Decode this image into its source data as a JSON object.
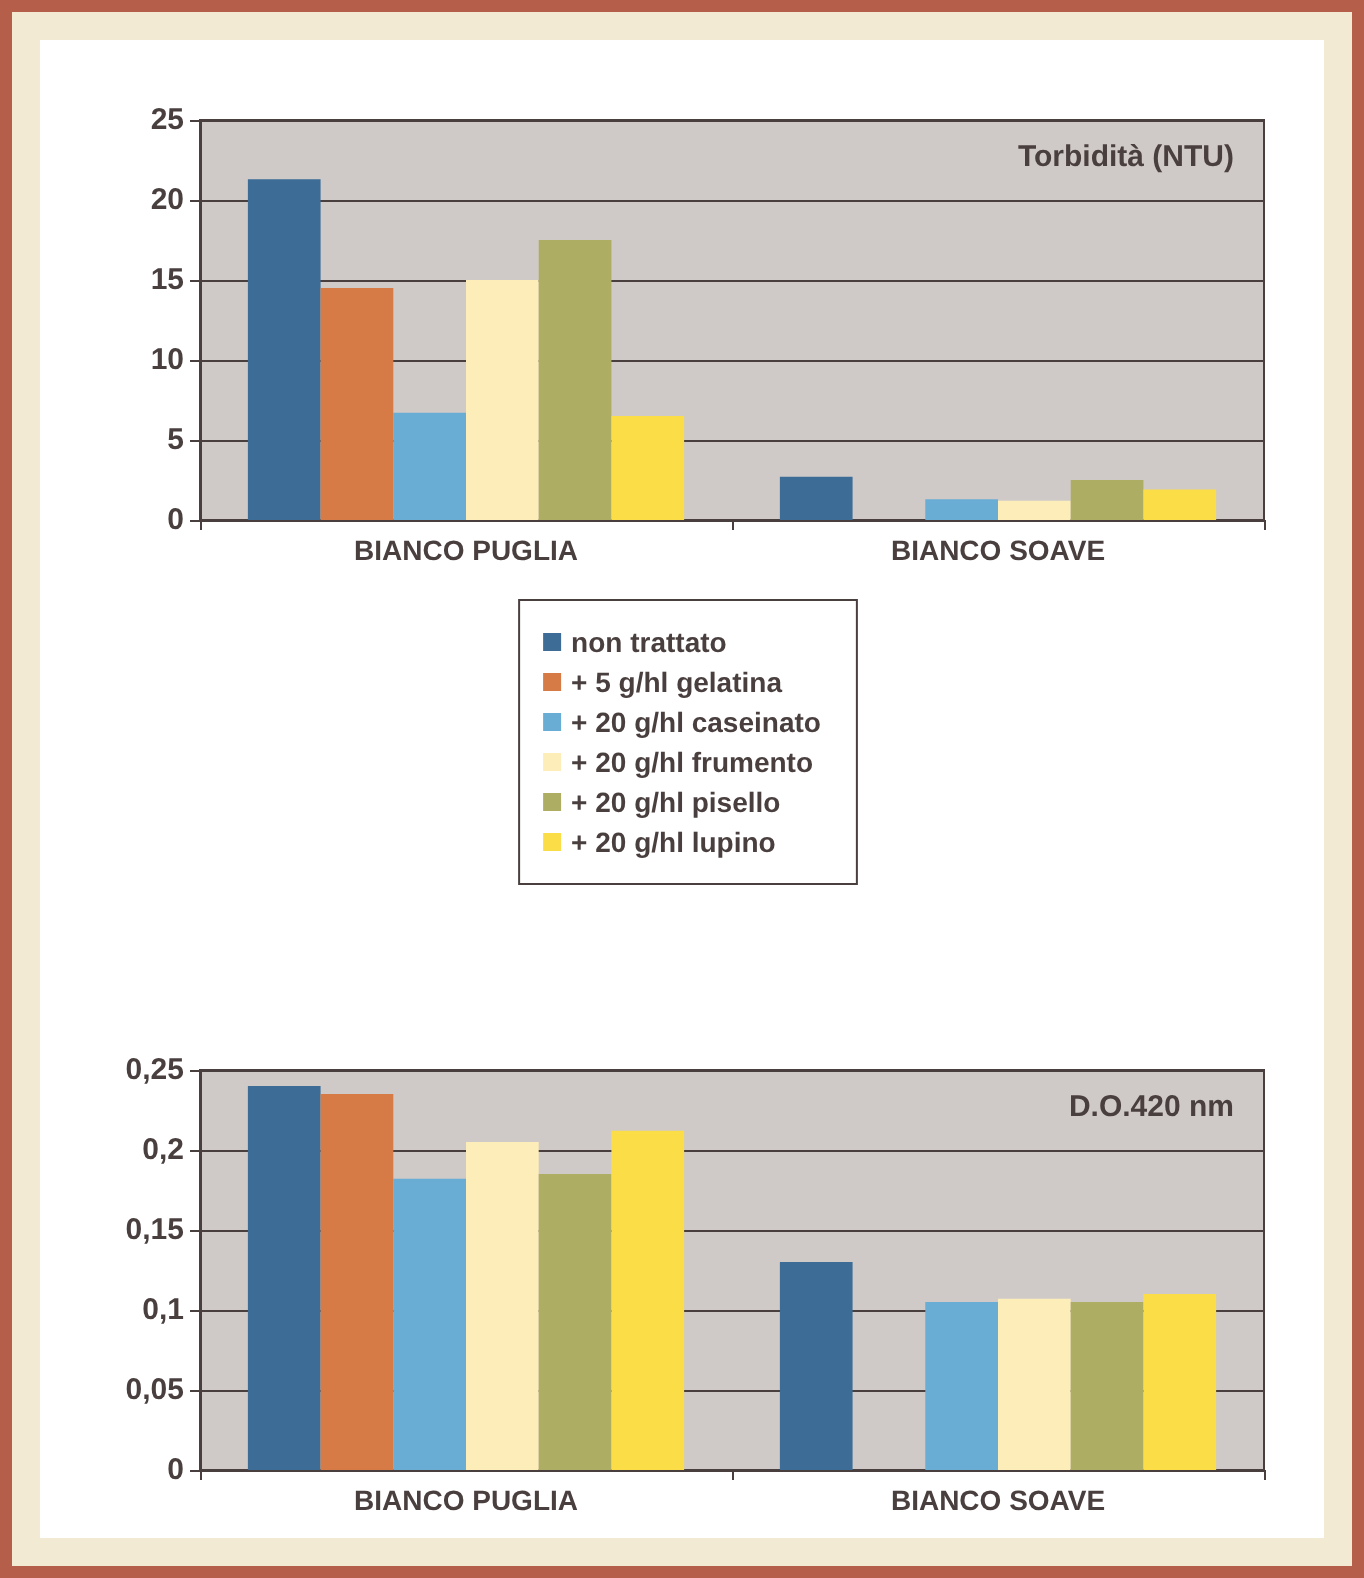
{
  "chart_data": [
    {
      "type": "bar",
      "title": "Torbidità (NTU)",
      "categories": [
        "BIANCO PUGLIA",
        "BIANCO SOAVE"
      ],
      "ylim": [
        0,
        25
      ],
      "yticks": [
        {
          "value": 0,
          "label": "0"
        },
        5,
        10,
        15,
        20,
        25
      ],
      "grid": "y",
      "legend": "bottom",
      "series": [
        {
          "name": "non trattato",
          "color": "#3d6d96",
          "values": [
            21.3,
            2.7
          ]
        },
        {
          "name": "+ 5 g/hl gelatina",
          "color": "#d67b45",
          "values": [
            14.5,
            null
          ]
        },
        {
          "name": "+ 20 g/hl caseinato",
          "color": "#6aadd4",
          "values": [
            6.7,
            1.3
          ]
        },
        {
          "name": "+ 20 g/hl frumento",
          "color": "#fdedb8",
          "values": [
            15,
            1.2
          ]
        },
        {
          "name": "+ 20 g/hl pisello",
          "color": "#adad64",
          "values": [
            17.5,
            2.5
          ]
        },
        {
          "name": "+ 20 g/hl lupino",
          "color": "#fbdd47",
          "values": [
            6.5,
            1.9
          ]
        }
      ]
    },
    {
      "type": "bar",
      "title": "D.O.420 nm",
      "categories": [
        "BIANCO PUGLIA",
        "BIANCO SOAVE"
      ],
      "ylim": [
        0,
        0.25
      ],
      "yticks": [
        {
          "value": 0,
          "label": "0"
        },
        {
          "value": 0.05,
          "label": "0,05"
        },
        {
          "value": 0.1,
          "label": "0,1"
        },
        {
          "value": 0.15,
          "label": "0,15"
        },
        {
          "value": 0.2,
          "label": "0,2"
        },
        {
          "value": 0.25,
          "label": "0,25"
        }
      ],
      "grid": "y",
      "series": [
        {
          "color": "#3d6d96",
          "values": [
            0.24,
            0.13
          ]
        },
        {
          "color": "#d67b45",
          "values": [
            0.235,
            null
          ]
        },
        {
          "color": "#6aadd4",
          "values": [
            0.182,
            0.105
          ]
        },
        {
          "color": "#fdedb8",
          "values": [
            0.205,
            0.107
          ]
        },
        {
          "color": "#adad64",
          "values": [
            0.185,
            0.105
          ]
        },
        {
          "color": "#fbdd47",
          "values": [
            0.212,
            0.11
          ]
        }
      ]
    }
  ]
}
